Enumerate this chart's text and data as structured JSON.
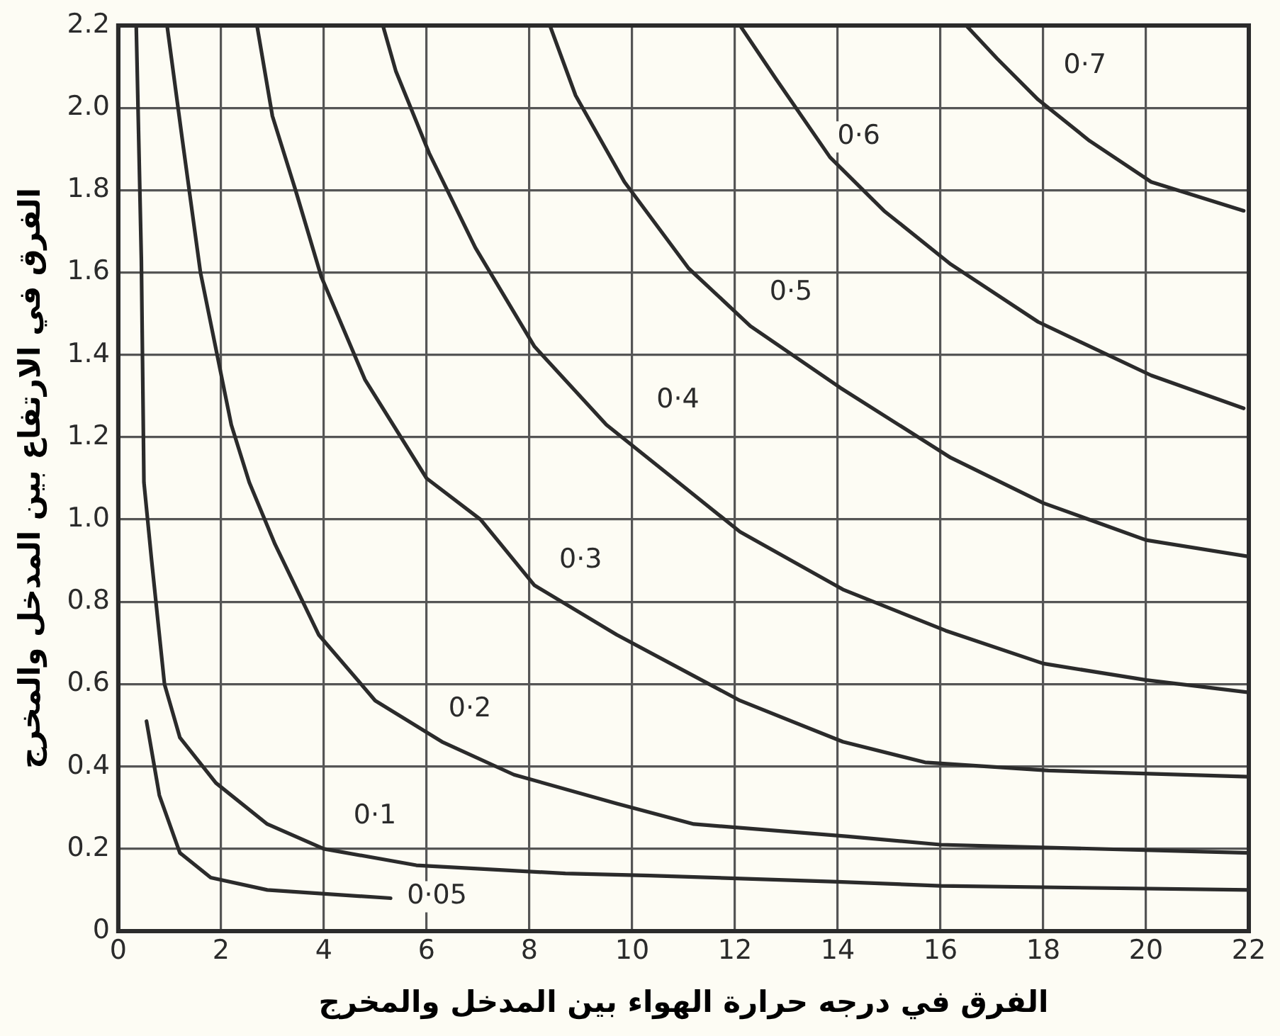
{
  "chart_data": {
    "type": "line",
    "xlabel": "الفرق في درجه حرارة الهواء بين المدخل والمخرج",
    "ylabel": "الفرق في الارتفاع بين المدخل والمخرج",
    "xlim": [
      0,
      22
    ],
    "ylim": [
      0,
      2.2
    ],
    "xticks": [
      0,
      2,
      4,
      6,
      8,
      10,
      12,
      14,
      16,
      18,
      20,
      22
    ],
    "yticks": [
      0,
      0.2,
      0.4,
      0.6,
      0.8,
      {
        "value": 1,
        "label": "1.0"
      },
      1.2,
      1.4,
      1.6,
      1.8,
      {
        "value": 2,
        "label": "2.0"
      },
      2.2
    ],
    "grid": true,
    "legend": false,
    "marker": "none",
    "line_style": "solid",
    "series": [
      {
        "name": "0·05",
        "color": "#2b2b2b",
        "x": [
          0.55,
          0.8,
          1.2,
          1.8,
          2.9,
          5.3
        ],
        "values": [
          0.51,
          0.33,
          0.19,
          0.13,
          0.1,
          0.08
        ]
      },
      {
        "name": "0·1",
        "color": "#2b2b2b",
        "x": [
          0.35,
          0.45,
          0.5,
          0.65,
          0.9,
          1.2,
          1.9,
          2.9,
          4,
          5.8,
          8.7,
          10.35,
          14,
          16,
          22
        ],
        "values": [
          2.2,
          1.63,
          1.09,
          0.9,
          0.6,
          0.47,
          0.36,
          0.26,
          0.2,
          0.16,
          0.14,
          0.135,
          0.12,
          0.11,
          0.1
        ]
      },
      {
        "name": "0·2",
        "color": "#2b2b2b",
        "x": [
          0.95,
          1.25,
          1.6,
          2.2,
          2.55,
          3.05,
          3.9,
          5,
          6.3,
          7.7,
          9.7,
          11.2,
          14.2,
          16,
          22
        ],
        "values": [
          2.2,
          1.92,
          1.6,
          1.23,
          1.09,
          0.94,
          0.72,
          0.56,
          0.46,
          0.38,
          0.31,
          0.26,
          0.23,
          0.21,
          0.19
        ]
      },
      {
        "name": "0·3",
        "color": "#2b2b2b",
        "x": [
          2.7,
          3,
          3.45,
          3.95,
          4.8,
          6,
          7.05,
          8.1,
          9.7,
          11.2,
          12.1,
          14.1,
          15.7,
          18.1,
          22
        ],
        "values": [
          2.2,
          1.98,
          1.8,
          1.59,
          1.34,
          1.1,
          1,
          0.84,
          0.72,
          0.62,
          0.56,
          0.46,
          0.41,
          0.39,
          0.375
        ]
      },
      {
        "name": "0·4",
        "color": "#2b2b2b",
        "x": [
          5.15,
          5.4,
          6.05,
          6.95,
          8.1,
          9.5,
          10.9,
          12.1,
          14.1,
          16.1,
          18,
          20,
          22
        ],
        "values": [
          2.2,
          2.09,
          1.89,
          1.66,
          1.42,
          1.23,
          1.09,
          0.97,
          0.83,
          0.73,
          0.65,
          0.61,
          0.58
        ]
      },
      {
        "name": "0·5",
        "color": "#2b2b2b",
        "x": [
          8.4,
          8.9,
          9.85,
          11.1,
          12.3,
          14.05,
          16.2,
          18,
          20,
          22
        ],
        "values": [
          2.2,
          2.03,
          1.82,
          1.61,
          1.47,
          1.32,
          1.15,
          1.04,
          0.95,
          0.91
        ]
      },
      {
        "name": "0·6",
        "color": "#2b2b2b",
        "x": [
          12.1,
          12.8,
          13.85,
          14.9,
          16.2,
          17.9,
          20.1,
          21.9
        ],
        "values": [
          2.2,
          2.07,
          1.88,
          1.75,
          1.62,
          1.48,
          1.35,
          1.27
        ]
      },
      {
        "name": "0·7",
        "color": "#2b2b2b",
        "x": [
          16.5,
          17.1,
          17.9,
          18.9,
          20.1,
          21.9
        ],
        "values": [
          2.2,
          2.12,
          2.02,
          1.92,
          1.82,
          1.75
        ]
      }
    ]
  }
}
